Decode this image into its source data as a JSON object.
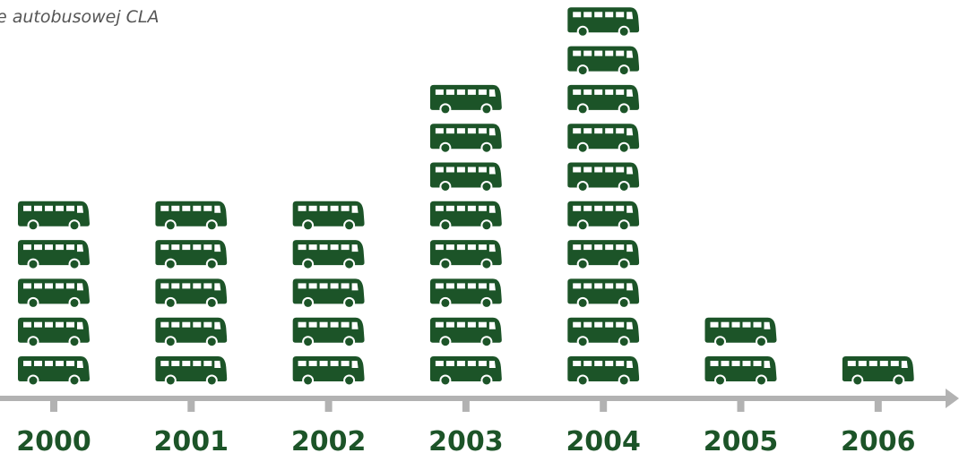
{
  "subtitle": "e autobusowej CLA",
  "colors": {
    "bus": "#1c5428",
    "axis": "#b2b2b2",
    "label": "#1c5428"
  },
  "icon": "bus-icon",
  "chart_data": {
    "type": "bar",
    "categories": [
      "2000",
      "2001",
      "2002",
      "2003",
      "2004",
      "2005",
      "2006"
    ],
    "values": [
      5,
      5,
      5,
      8,
      10,
      2,
      1
    ],
    "title": "",
    "xlabel": "",
    "ylabel": "",
    "grid": false,
    "legend": "none"
  }
}
